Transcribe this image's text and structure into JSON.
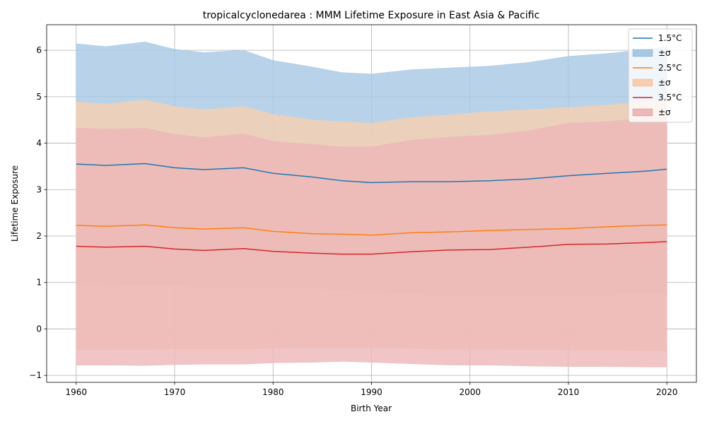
{
  "chart_data": {
    "type": "area",
    "title": "tropicalcyclonedarea : MMM Lifetime Exposure in East Asia & Pacific",
    "xlabel": "Birth Year",
    "ylabel": "Lifetime Exposure",
    "xlim": [
      1957.0,
      2023.0
    ],
    "ylim": [
      -1.15,
      6.55
    ],
    "xticks": [
      1960,
      1970,
      1980,
      1990,
      2000,
      2010,
      2020
    ],
    "yticks": [
      -1,
      0,
      1,
      2,
      3,
      4,
      5,
      6
    ],
    "grid": true,
    "legend_position": "top-right",
    "x": [
      1960,
      1963,
      1967,
      1970,
      1973,
      1977,
      1980,
      1984,
      1987,
      1990,
      1994,
      1998,
      2002,
      2006,
      2010,
      2014,
      2018,
      2020
    ],
    "series": [
      {
        "name": "1.5°C",
        "band_label": "±σ",
        "color": "#1f77b4",
        "band_color": "#a6c8e3",
        "values": [
          3.55,
          3.52,
          3.56,
          3.47,
          3.43,
          3.47,
          3.35,
          3.27,
          3.19,
          3.15,
          3.17,
          3.17,
          3.19,
          3.23,
          3.3,
          3.35,
          3.4,
          3.44
        ],
        "upper": [
          6.14,
          6.08,
          6.18,
          6.02,
          5.95,
          6.0,
          5.78,
          5.64,
          5.52,
          5.49,
          5.58,
          5.62,
          5.66,
          5.74,
          5.87,
          5.93,
          6.02,
          6.07
        ],
        "lower": [
          0.96,
          0.95,
          0.94,
          0.92,
          0.9,
          0.91,
          0.89,
          0.87,
          0.84,
          0.8,
          0.75,
          0.71,
          0.7,
          0.7,
          0.72,
          0.73,
          0.76,
          0.77
        ]
      },
      {
        "name": "2.5°C",
        "band_label": "±σ",
        "color": "#ff7f0e",
        "band_color": "#f7cfb0",
        "values": [
          2.23,
          2.21,
          2.24,
          2.18,
          2.15,
          2.18,
          2.1,
          2.05,
          2.04,
          2.02,
          2.07,
          2.09,
          2.12,
          2.14,
          2.16,
          2.2,
          2.23,
          2.24
        ],
        "upper": [
          4.89,
          4.84,
          4.93,
          4.79,
          4.72,
          4.79,
          4.62,
          4.5,
          4.46,
          4.43,
          4.55,
          4.61,
          4.68,
          4.72,
          4.77,
          4.82,
          4.9,
          4.92
        ],
        "lower": [
          -0.45,
          -0.45,
          -0.45,
          -0.43,
          -0.43,
          -0.43,
          -0.42,
          -0.4,
          -0.4,
          -0.4,
          -0.42,
          -0.44,
          -0.44,
          -0.45,
          -0.45,
          -0.46,
          -0.47,
          -0.47
        ]
      },
      {
        "name": "3.5°C",
        "band_label": "±σ",
        "color": "#d62728",
        "band_color": "#eeb7b8",
        "values": [
          1.78,
          1.76,
          1.78,
          1.72,
          1.69,
          1.73,
          1.67,
          1.63,
          1.61,
          1.61,
          1.66,
          1.7,
          1.71,
          1.76,
          1.82,
          1.83,
          1.86,
          1.88
        ],
        "upper": [
          4.33,
          4.3,
          4.32,
          4.19,
          4.12,
          4.2,
          4.04,
          3.97,
          3.92,
          3.92,
          4.06,
          4.13,
          4.17,
          4.27,
          4.43,
          4.46,
          4.55,
          4.57
        ],
        "lower": [
          -0.78,
          -0.78,
          -0.79,
          -0.77,
          -0.76,
          -0.76,
          -0.73,
          -0.72,
          -0.7,
          -0.72,
          -0.75,
          -0.78,
          -0.78,
          -0.8,
          -0.81,
          -0.81,
          -0.82,
          -0.82
        ]
      }
    ]
  }
}
